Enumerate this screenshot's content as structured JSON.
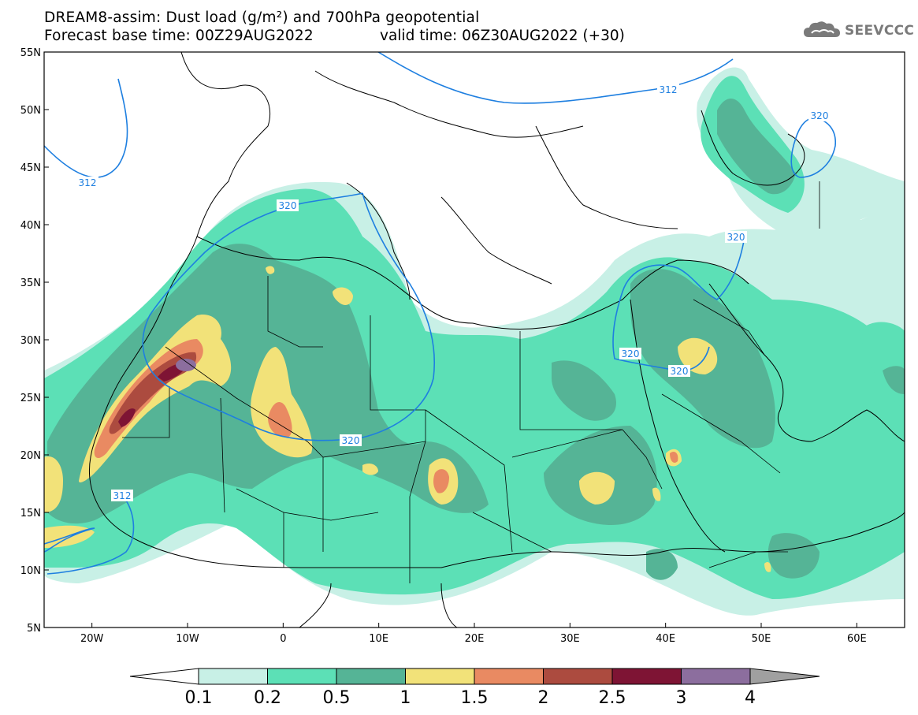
{
  "header": {
    "title_line1": "DREAM8-assim: Dust load (g/m²) and 700hPa geopotential",
    "title_line2": "Forecast base time: 00Z29AUG2022",
    "valid_time": "valid time: 06Z30AUG2022 (+30)",
    "logo_text": "SEEVCCC",
    "logo_icon": "cloud-icon"
  },
  "map": {
    "lon_range": [
      -25,
      65
    ],
    "lat_range": [
      5,
      55
    ],
    "lon_ticks": [
      {
        "value": -20,
        "label": "20W"
      },
      {
        "value": -10,
        "label": "10W"
      },
      {
        "value": 0,
        "label": "0"
      },
      {
        "value": 10,
        "label": "10E"
      },
      {
        "value": 20,
        "label": "20E"
      },
      {
        "value": 30,
        "label": "30E"
      },
      {
        "value": 40,
        "label": "40E"
      },
      {
        "value": 50,
        "label": "50E"
      },
      {
        "value": 60,
        "label": "60E"
      }
    ],
    "lat_ticks": [
      {
        "value": 55,
        "label": "55N"
      },
      {
        "value": 50,
        "label": "50N"
      },
      {
        "value": 45,
        "label": "45N"
      },
      {
        "value": 40,
        "label": "40N"
      },
      {
        "value": 35,
        "label": "35N"
      },
      {
        "value": 30,
        "label": "30N"
      },
      {
        "value": 25,
        "label": "25N"
      },
      {
        "value": 20,
        "label": "20N"
      },
      {
        "value": 15,
        "label": "15N"
      },
      {
        "value": 10,
        "label": "10N"
      },
      {
        "value": 5,
        "label": "5N"
      }
    ],
    "contour_labels": [
      "312",
      "312",
      "312",
      "320",
      "320",
      "320",
      "320",
      "320",
      "320"
    ],
    "contour_color": "#1e7fe0"
  },
  "colorbar": {
    "bins": [
      {
        "color": "#c8f0e6"
      },
      {
        "color": "#5ce0b6"
      },
      {
        "color": "#55b496"
      },
      {
        "color": "#f2e279"
      },
      {
        "color": "#e98a62"
      },
      {
        "color": "#ac4b3f"
      },
      {
        "color": "#7e1434"
      },
      {
        "color": "#8c6e9e"
      }
    ],
    "low_color": "#ffffff",
    "high_color": "#a0a0a0",
    "labels": [
      "0.1",
      "0.2",
      "0.5",
      "1",
      "1.5",
      "2",
      "2.5",
      "3",
      "4"
    ]
  }
}
